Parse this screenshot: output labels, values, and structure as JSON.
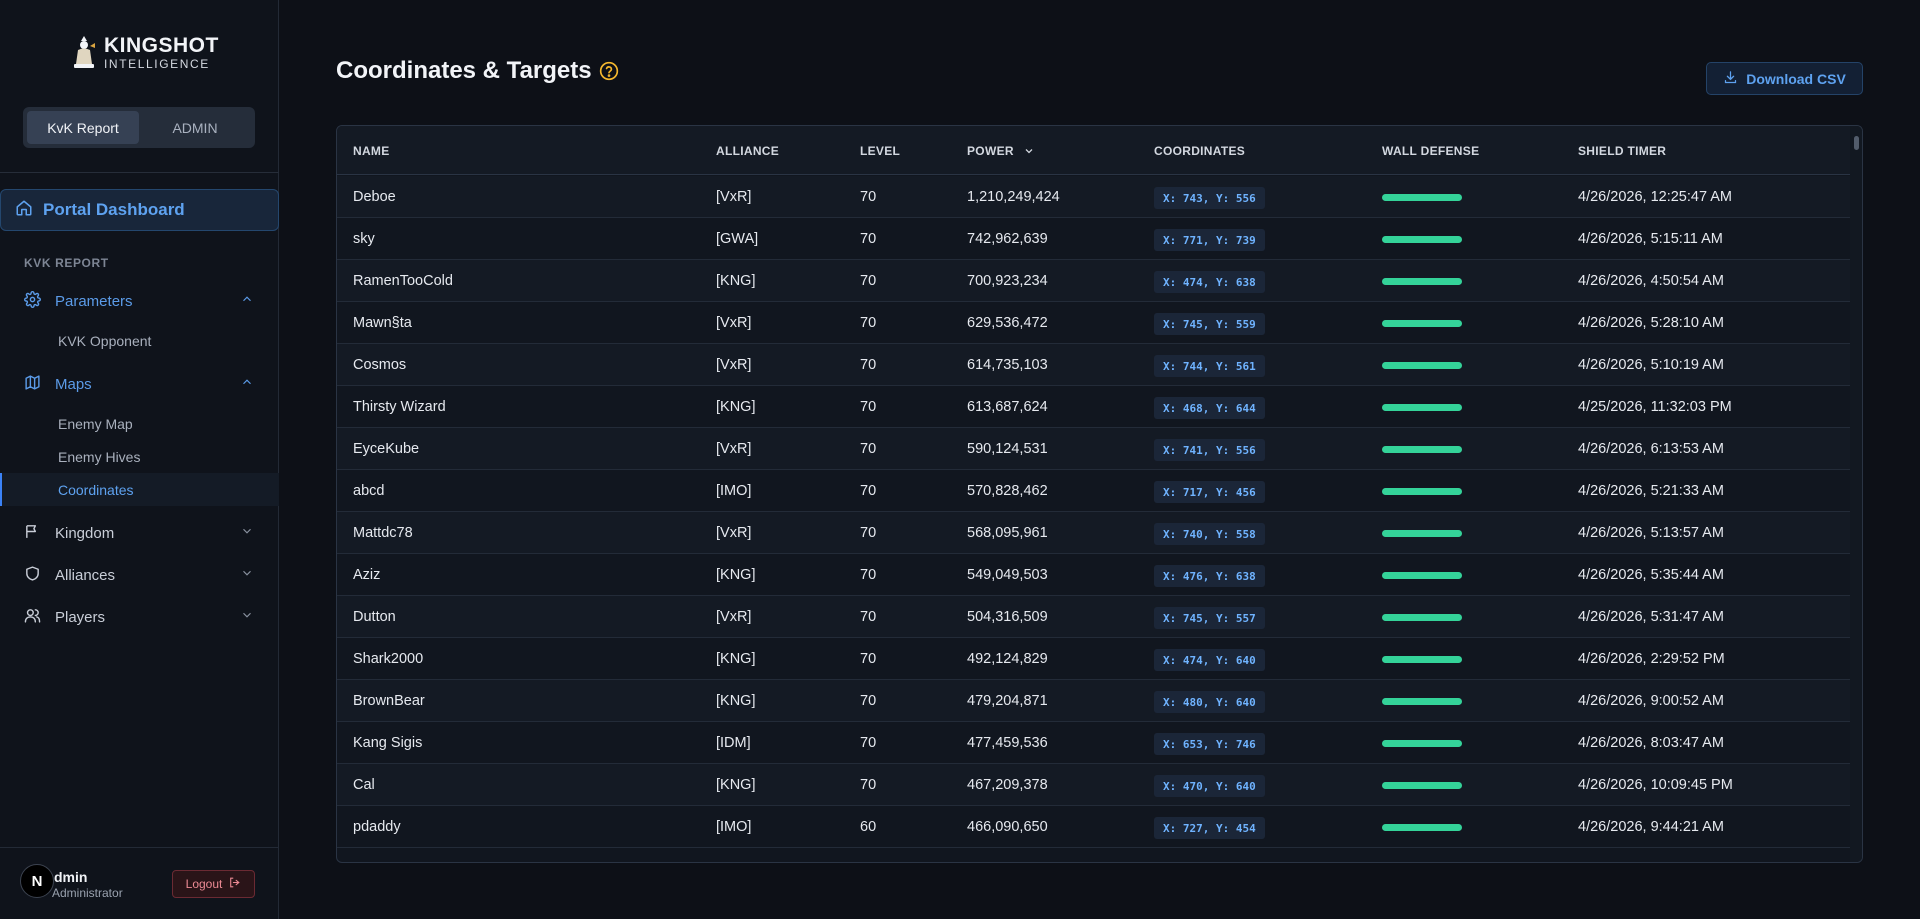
{
  "brand": {
    "line1": "KINGSHOT",
    "line2": "INTELLIGENCE"
  },
  "tabs": [
    {
      "label": "KvK Report",
      "active": true
    },
    {
      "label": "ADMIN",
      "active": false
    }
  ],
  "nav": {
    "portal": "Portal Dashboard",
    "section": "KVK REPORT",
    "parameters": "Parameters",
    "kvk_opponent": "KVK Opponent",
    "maps": "Maps",
    "enemy_map": "Enemy Map",
    "enemy_hives": "Enemy Hives",
    "coordinates": "Coordinates",
    "kingdom": "Kingdom",
    "alliances": "Alliances",
    "players": "Players"
  },
  "user": {
    "avatar": "N",
    "name": "dmin",
    "role": "Administrator",
    "logout": "Logout"
  },
  "page": {
    "title": "Coordinates & Targets",
    "download": "Download CSV"
  },
  "colors": {
    "accent": "#5ea2f0",
    "wall_full": "#34d399",
    "coord_text": "#6fb3ff"
  },
  "table": {
    "columns": [
      "NAME",
      "ALLIANCE",
      "LEVEL",
      "POWER",
      "COORDINATES",
      "WALL DEFENSE",
      "SHIELD TIMER"
    ],
    "sort_column": "POWER",
    "rows": [
      {
        "name": "Deboe",
        "alliance": "[VxR]",
        "level": "70",
        "power": "1,210,249,424",
        "coords": "X: 743, Y: 556",
        "wall": 1.0,
        "shield": "4/26/2026, 12:25:47 AM"
      },
      {
        "name": "sky",
        "alliance": "[GWA]",
        "level": "70",
        "power": "742,962,639",
        "coords": "X: 771, Y: 739",
        "wall": 1.0,
        "shield": "4/26/2026, 5:15:11 AM"
      },
      {
        "name": "RamenTooCold",
        "alliance": "[KNG]",
        "level": "70",
        "power": "700,923,234",
        "coords": "X: 474, Y: 638",
        "wall": 1.0,
        "shield": "4/26/2026, 4:50:54 AM"
      },
      {
        "name": "Mawn§ta",
        "alliance": "[VxR]",
        "level": "70",
        "power": "629,536,472",
        "coords": "X: 745, Y: 559",
        "wall": 1.0,
        "shield": "4/26/2026, 5:28:10 AM"
      },
      {
        "name": "Cosmos",
        "alliance": "[VxR]",
        "level": "70",
        "power": "614,735,103",
        "coords": "X: 744, Y: 561",
        "wall": 1.0,
        "shield": "4/26/2026, 5:10:19 AM"
      },
      {
        "name": "Thirsty Wizard",
        "alliance": "[KNG]",
        "level": "70",
        "power": "613,687,624",
        "coords": "X: 468, Y: 644",
        "wall": 1.0,
        "shield": "4/25/2026, 11:32:03 PM"
      },
      {
        "name": "EyceKube",
        "alliance": "[VxR]",
        "level": "70",
        "power": "590,124,531",
        "coords": "X: 741, Y: 556",
        "wall": 1.0,
        "shield": "4/26/2026, 6:13:53 AM"
      },
      {
        "name": "abcd",
        "alliance": "[IMO]",
        "level": "70",
        "power": "570,828,462",
        "coords": "X: 717, Y: 456",
        "wall": 1.0,
        "shield": "4/26/2026, 5:21:33 AM"
      },
      {
        "name": "Mattdc78",
        "alliance": "[VxR]",
        "level": "70",
        "power": "568,095,961",
        "coords": "X: 740, Y: 558",
        "wall": 1.0,
        "shield": "4/26/2026, 5:13:57 AM"
      },
      {
        "name": "Aziz",
        "alliance": "[KNG]",
        "level": "70",
        "power": "549,049,503",
        "coords": "X: 476, Y: 638",
        "wall": 1.0,
        "shield": "4/26/2026, 5:35:44 AM"
      },
      {
        "name": "Dutton",
        "alliance": "[VxR]",
        "level": "70",
        "power": "504,316,509",
        "coords": "X: 745, Y: 557",
        "wall": 1.0,
        "shield": "4/26/2026, 5:31:47 AM"
      },
      {
        "name": "Shark2000",
        "alliance": "[KNG]",
        "level": "70",
        "power": "492,124,829",
        "coords": "X: 474, Y: 640",
        "wall": 1.0,
        "shield": "4/26/2026, 2:29:52 PM"
      },
      {
        "name": "BrownBear",
        "alliance": "[KNG]",
        "level": "70",
        "power": "479,204,871",
        "coords": "X: 480, Y: 640",
        "wall": 1.0,
        "shield": "4/26/2026, 9:00:52 AM"
      },
      {
        "name": "Kang Sigis",
        "alliance": "[IDM]",
        "level": "70",
        "power": "477,459,536",
        "coords": "X: 653, Y: 746",
        "wall": 1.0,
        "shield": "4/26/2026, 8:03:47 AM"
      },
      {
        "name": "Cal",
        "alliance": "[KNG]",
        "level": "70",
        "power": "467,209,378",
        "coords": "X: 470, Y: 640",
        "wall": 1.0,
        "shield": "4/26/2026, 10:09:45 PM"
      },
      {
        "name": "pdaddy",
        "alliance": "[IMO]",
        "level": "60",
        "power": "466,090,650",
        "coords": "X: 727, Y: 454",
        "wall": 1.0,
        "shield": "4/26/2026, 9:44:21 AM"
      }
    ]
  }
}
